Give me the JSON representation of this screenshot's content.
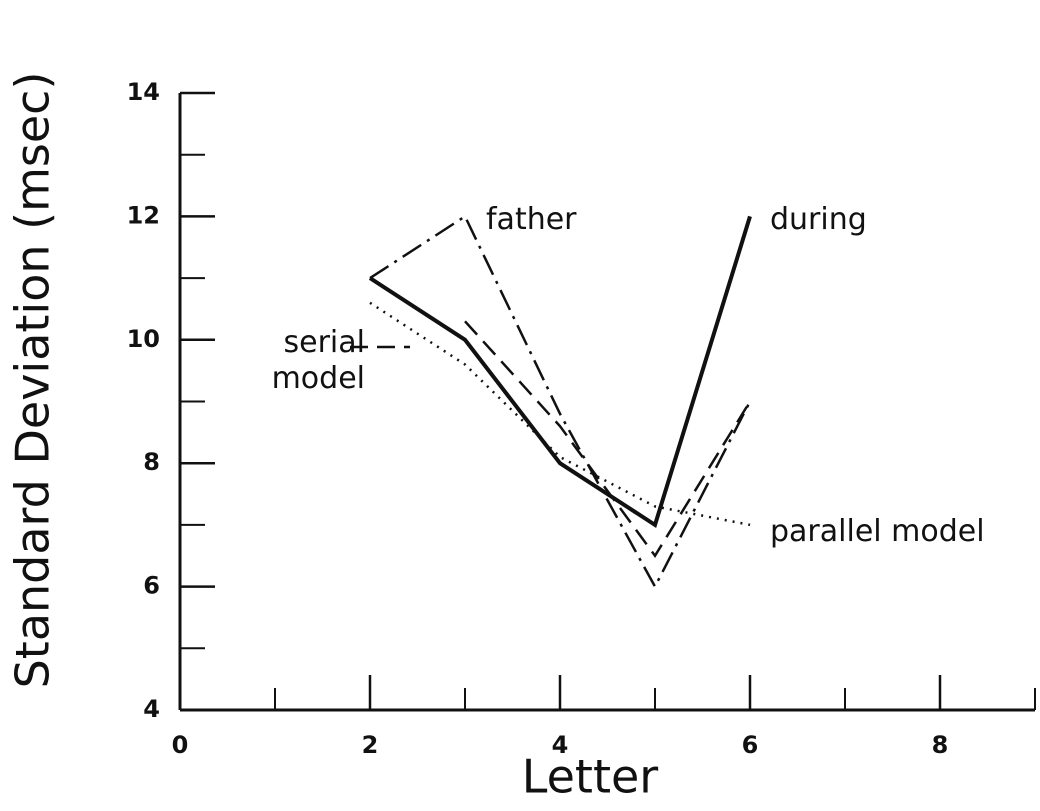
{
  "chart_data": {
    "type": "line",
    "xlabel": "Letter",
    "ylabel": "Standard Deviation (msec)",
    "xlim": [
      0,
      9
    ],
    "xticks": [
      0,
      2,
      4,
      6,
      8
    ],
    "xminor_ticks": [
      1,
      3,
      5,
      7,
      9
    ],
    "ylim": [
      4,
      14
    ],
    "yticks": [
      4,
      6,
      8,
      10,
      12,
      14
    ],
    "yminor_ticks": [
      5,
      7,
      9,
      11,
      13
    ],
    "series": [
      {
        "name": "during",
        "color": "#111111",
        "dash": "solid",
        "x": [
          2,
          3,
          4,
          5,
          6
        ],
        "values": [
          11,
          10,
          8,
          7,
          12
        ]
      },
      {
        "name": "father",
        "color": "#111111",
        "dash": "dashdot",
        "x": [
          2,
          3,
          4,
          5,
          6
        ],
        "values": [
          11,
          12,
          8.8,
          6,
          9
        ]
      },
      {
        "name": "serial model",
        "color": "#111111",
        "dash": "dashed",
        "x": [
          3,
          4,
          5,
          6
        ],
        "values": [
          10.3,
          8.6,
          6.5,
          9
        ]
      },
      {
        "name": "parallel model",
        "color": "#111111",
        "dash": "dotted",
        "x": [
          2,
          3,
          4,
          5,
          6
        ],
        "values": [
          10.6,
          9.6,
          8.1,
          7.3,
          7.0
        ]
      }
    ]
  }
}
